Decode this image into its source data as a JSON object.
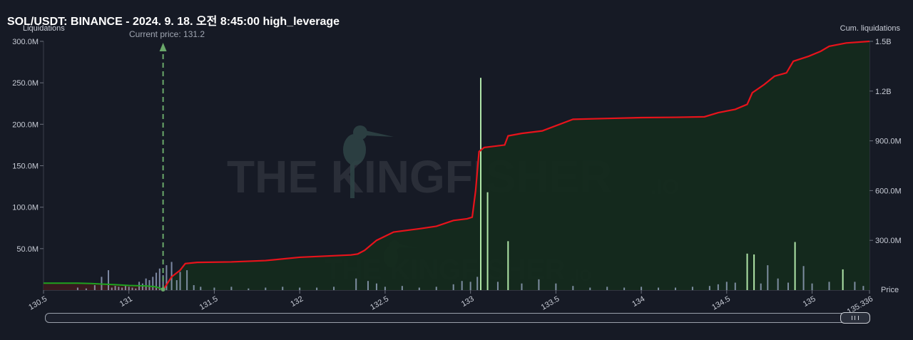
{
  "header": {
    "title": "SOL/USDT: BINANCE - 2024. 9. 18. 오전 8:45:00 high_leverage"
  },
  "colors": {
    "background": "#161a25",
    "cumulative_short_line": "#e8131b",
    "cumulative_long_line": "#1fa21f",
    "short_area_fill": "#142a1c",
    "long_area_fill": "#3a1a1f",
    "bar_color": "#aab8d8",
    "highlight_bar_color": "#b8f0b0",
    "current_price_line": "#6aa86a"
  },
  "watermark": {
    "brand": "THE KINGFISHER",
    "suffix": ".IO"
  },
  "chart_data": {
    "type": "bar+line",
    "x_axis": {
      "title": "Price",
      "range": [
        130.5,
        135.336
      ],
      "ticks": [
        "130.5",
        "131",
        "131.5",
        "132",
        "132.5",
        "133",
        "133.5",
        "134",
        "134.5",
        "135",
        "135.336"
      ],
      "tick_values": [
        130.5,
        131.0,
        131.5,
        132.0,
        132.5,
        133.0,
        133.5,
        134.0,
        134.5,
        135.0,
        135.336
      ]
    },
    "y_axis_left": {
      "title": "Liquidations",
      "range": [
        0,
        300000000
      ],
      "ticks": [
        "50.0M",
        "100.0M",
        "150.0M",
        "200.0M",
        "250.0M",
        "300.0M"
      ],
      "tick_values": [
        50000000,
        100000000,
        150000000,
        200000000,
        250000000,
        300000000
      ]
    },
    "y_axis_right": {
      "title": "Cum. liquidations",
      "range": [
        0,
        1500000000
      ],
      "ticks": [
        "300.0M",
        "600.0M",
        "900.0M",
        "1.2B",
        "1.5B"
      ],
      "tick_values": [
        300000000,
        600000000,
        900000000,
        1200000000,
        1500000000
      ]
    },
    "current_price": {
      "label": "Current price: 131.2",
      "value": 131.2
    },
    "cum_long": [
      [
        130.5,
        42000000
      ],
      [
        130.7,
        42000000
      ],
      [
        130.78,
        40000000
      ],
      [
        130.85,
        36000000
      ],
      [
        130.92,
        33000000
      ],
      [
        131.0,
        28000000
      ],
      [
        131.1,
        25000000
      ],
      [
        131.15,
        21000000
      ],
      [
        131.18,
        13000000
      ],
      [
        131.2,
        0
      ]
    ],
    "cum_short": [
      [
        131.2,
        0
      ],
      [
        131.25,
        80000000
      ],
      [
        131.3,
        120000000
      ],
      [
        131.33,
        160000000
      ],
      [
        131.4,
        167000000
      ],
      [
        131.6,
        170000000
      ],
      [
        131.8,
        178000000
      ],
      [
        132.0,
        198000000
      ],
      [
        132.3,
        212000000
      ],
      [
        132.34,
        218000000
      ],
      [
        132.38,
        240000000
      ],
      [
        132.45,
        300000000
      ],
      [
        132.55,
        350000000
      ],
      [
        132.7,
        370000000
      ],
      [
        132.8,
        385000000
      ],
      [
        132.9,
        420000000
      ],
      [
        132.98,
        430000000
      ],
      [
        133.01,
        440000000
      ],
      [
        133.03,
        600000000
      ],
      [
        133.05,
        835000000
      ],
      [
        133.08,
        860000000
      ],
      [
        133.2,
        875000000
      ],
      [
        133.22,
        930000000
      ],
      [
        133.3,
        945000000
      ],
      [
        133.42,
        960000000
      ],
      [
        133.6,
        1030000000
      ],
      [
        133.8,
        1035000000
      ],
      [
        134.0,
        1040000000
      ],
      [
        134.2,
        1042000000
      ],
      [
        134.37,
        1045000000
      ],
      [
        134.45,
        1070000000
      ],
      [
        134.55,
        1090000000
      ],
      [
        134.62,
        1120000000
      ],
      [
        134.65,
        1190000000
      ],
      [
        134.72,
        1240000000
      ],
      [
        134.78,
        1290000000
      ],
      [
        134.85,
        1310000000
      ],
      [
        134.89,
        1380000000
      ],
      [
        134.98,
        1410000000
      ],
      [
        135.05,
        1440000000
      ],
      [
        135.1,
        1470000000
      ],
      [
        135.2,
        1490000000
      ],
      [
        135.336,
        1500000000
      ]
    ],
    "bars": [
      [
        130.7,
        3000000
      ],
      [
        130.75,
        2000000
      ],
      [
        130.8,
        6000000
      ],
      [
        130.84,
        16000000
      ],
      [
        130.88,
        24000000
      ],
      [
        130.9,
        3000000
      ],
      [
        130.92,
        5000000
      ],
      [
        130.94,
        4000000
      ],
      [
        130.96,
        3000000
      ],
      [
        130.98,
        5000000
      ],
      [
        131.0,
        4000000
      ],
      [
        131.02,
        3000000
      ],
      [
        131.04,
        2000000
      ],
      [
        131.06,
        10000000
      ],
      [
        131.08,
        8000000
      ],
      [
        131.1,
        14000000
      ],
      [
        131.12,
        12000000
      ],
      [
        131.14,
        16000000
      ],
      [
        131.16,
        21000000
      ],
      [
        131.18,
        26000000
      ],
      [
        131.2,
        18000000
      ],
      [
        131.22,
        30000000
      ],
      [
        131.25,
        34000000
      ],
      [
        131.28,
        12000000
      ],
      [
        131.3,
        22000000
      ],
      [
        131.34,
        24000000
      ],
      [
        131.38,
        6000000
      ],
      [
        131.42,
        4000000
      ],
      [
        131.5,
        3000000
      ],
      [
        131.6,
        4000000
      ],
      [
        131.7,
        2000000
      ],
      [
        131.8,
        3000000
      ],
      [
        131.9,
        4000000
      ],
      [
        132.0,
        3000000
      ],
      [
        132.1,
        3000000
      ],
      [
        132.2,
        4000000
      ],
      [
        132.33,
        14000000
      ],
      [
        132.4,
        11000000
      ],
      [
        132.45,
        8000000
      ],
      [
        132.5,
        4000000
      ],
      [
        132.6,
        5000000
      ],
      [
        132.7,
        3000000
      ],
      [
        132.8,
        4000000
      ],
      [
        132.9,
        7000000
      ],
      [
        132.95,
        11000000
      ],
      [
        133.0,
        10000000
      ],
      [
        133.04,
        16000000
      ],
      [
        133.06,
        256000000
      ],
      [
        133.1,
        118000000
      ],
      [
        133.16,
        10000000
      ],
      [
        133.22,
        59000000
      ],
      [
        133.3,
        8000000
      ],
      [
        133.4,
        13000000
      ],
      [
        133.5,
        8000000
      ],
      [
        133.6,
        5000000
      ],
      [
        133.7,
        3000000
      ],
      [
        133.8,
        4000000
      ],
      [
        133.9,
        3000000
      ],
      [
        134.0,
        4000000
      ],
      [
        134.1,
        3000000
      ],
      [
        134.2,
        3000000
      ],
      [
        134.3,
        4000000
      ],
      [
        134.4,
        5000000
      ],
      [
        134.45,
        7000000
      ],
      [
        134.5,
        10000000
      ],
      [
        134.55,
        9000000
      ],
      [
        134.62,
        44000000
      ],
      [
        134.66,
        43000000
      ],
      [
        134.7,
        8000000
      ],
      [
        134.74,
        30000000
      ],
      [
        134.8,
        14000000
      ],
      [
        134.86,
        9000000
      ],
      [
        134.9,
        58000000
      ],
      [
        134.95,
        29000000
      ],
      [
        135.0,
        8000000
      ],
      [
        135.1,
        10000000
      ],
      [
        135.18,
        25000000
      ],
      [
        135.25,
        10000000
      ],
      [
        135.3,
        5000000
      ]
    ],
    "highlight_bars": [
      133.06,
      133.1,
      133.22,
      134.62,
      134.66,
      134.9,
      135.18
    ]
  }
}
